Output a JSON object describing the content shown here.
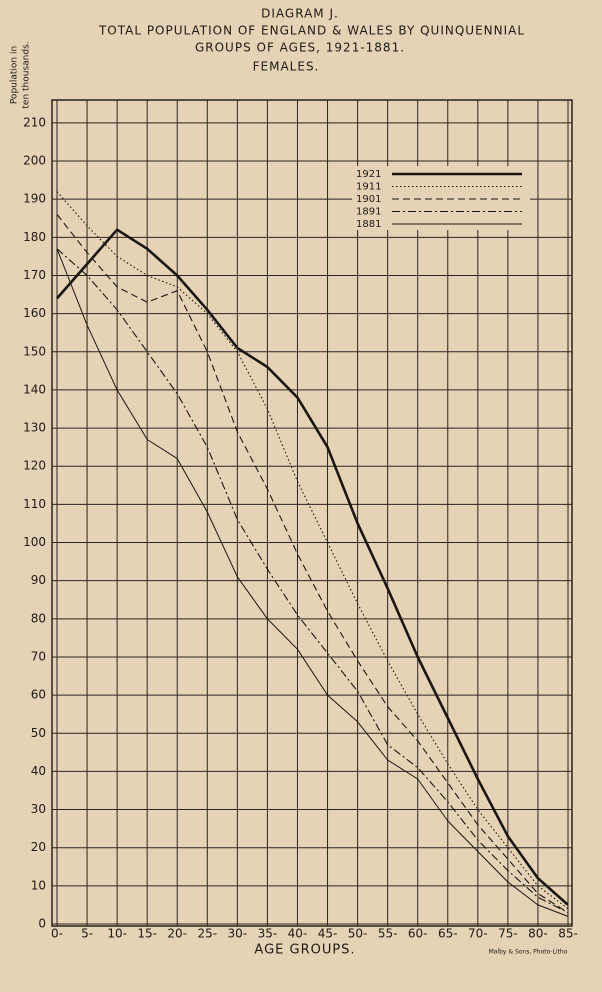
{
  "chart_data": {
    "type": "line",
    "title": [
      "DIAGRAM J.",
      "TOTAL POPULATION OF ENGLAND & WALES BY QUINQUENNIAL",
      "GROUPS OF AGES, 1921-1881.",
      "FEMALES."
    ],
    "y_label": [
      "Population in",
      "ten thousands."
    ],
    "x_label": "AGE GROUPS.",
    "credit": "Malby & Sons, Photo-Litho",
    "categories": [
      "0-",
      "5-",
      "10-",
      "15-",
      "20-",
      "25-",
      "30-",
      "35-",
      "40-",
      "45-",
      "50-",
      "55-",
      "60-",
      "65-",
      "70-",
      "75-",
      "80-",
      "85-"
    ],
    "ylim": [
      0,
      216
    ],
    "yticks": [
      0,
      10,
      20,
      30,
      40,
      50,
      60,
      70,
      80,
      90,
      100,
      110,
      120,
      130,
      140,
      150,
      160,
      170,
      180,
      190,
      200,
      210
    ],
    "grid": true,
    "series": [
      {
        "name": "1921",
        "color": "#1a1614",
        "width": 2.6,
        "dash": "none",
        "values": [
          164,
          173,
          182,
          177,
          170,
          161,
          151,
          146,
          138,
          125,
          105,
          88,
          70,
          54,
          38,
          23,
          12,
          5
        ]
      },
      {
        "name": "1911",
        "color": "#1a1614",
        "width": 1.1,
        "dash": "1.5 2.5",
        "values": [
          192,
          183,
          175,
          170,
          167,
          160,
          150,
          135,
          116,
          100,
          84,
          69,
          55,
          42,
          30,
          20,
          10,
          4
        ]
      },
      {
        "name": "1901",
        "color": "#1a1614",
        "width": 1.1,
        "dash": "7 4",
        "values": [
          186,
          176,
          167,
          163,
          166,
          150,
          129,
          114,
          97,
          82,
          69,
          57,
          48,
          37,
          26,
          17,
          8,
          3
        ]
      },
      {
        "name": "1891",
        "color": "#1a1614",
        "width": 1.1,
        "dash": "8 3 2 3",
        "values": [
          177,
          170,
          161,
          150,
          139,
          125,
          106,
          93,
          81,
          71,
          61,
          47,
          41,
          32,
          22,
          14,
          7,
          3
        ]
      },
      {
        "name": "1881",
        "color": "#1a1614",
        "width": 1,
        "dash": "none",
        "values": [
          177,
          157,
          140,
          127,
          122,
          108,
          91,
          80,
          72,
          60,
          53,
          43,
          38,
          27,
          19,
          11,
          5,
          2
        ]
      }
    ]
  }
}
